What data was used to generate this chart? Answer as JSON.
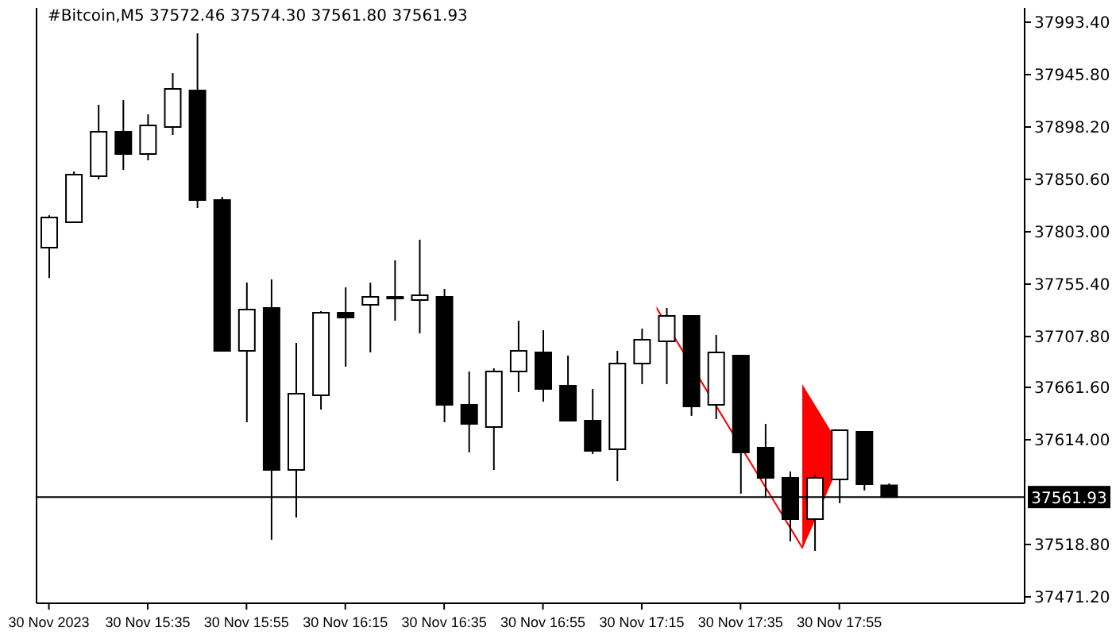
{
  "chart_data": {
    "type": "candlestick",
    "title": "#Bitcoin,M5 37572.46 37574.30 37561.80 37561.93",
    "categories": [
      "30 Nov 2023",
      null,
      null,
      null,
      "30 Nov 15:35",
      null,
      null,
      null,
      "30 Nov 15:55",
      null,
      null,
      null,
      "30 Nov 16:15",
      null,
      null,
      null,
      "30 Nov 16:35",
      null,
      null,
      null,
      "30 Nov 16:55",
      null,
      null,
      null,
      "30 Nov 17:15",
      null,
      null,
      null,
      "30 Nov 17:35",
      null,
      null,
      null,
      "30 Nov 17:55",
      null,
      null,
      null,
      null,
      null,
      null,
      null
    ],
    "ohlc": [
      [
        37788.6,
        37818,
        37761,
        37816
      ],
      [
        37811.6,
        37857.8,
        37811,
        37855
      ],
      [
        37853.5,
        37918.4,
        37850.6,
        37893.9
      ],
      [
        37893.9,
        37922.7,
        37859.2,
        37873.7
      ],
      [
        37873.7,
        37909.7,
        37867.9,
        37899.6
      ],
      [
        37898.2,
        37947.2,
        37891,
        37932.8
      ],
      [
        37931.4,
        37983.3,
        37824.6,
        37831.8
      ],
      [
        37831.8,
        37834.7,
        37694.8,
        37694.8
      ],
      [
        37694.8,
        37756.8,
        37629.9,
        37732.3
      ],
      [
        37733.7,
        37759.7,
        37523.1,
        37586.6
      ],
      [
        37586.6,
        37702,
        37543.3,
        37655.9
      ],
      [
        37654.4,
        37730.9,
        37641.4,
        37729.4
      ],
      [
        37729.4,
        37752.5,
        37680.4,
        37725.1
      ],
      [
        37736.6,
        37756.8,
        37693.4,
        37743.8
      ],
      [
        37743.8,
        37777,
        37722.2,
        37743.8
      ],
      [
        37741,
        37795.8,
        37710.7,
        37745.3
      ],
      [
        37743.8,
        37751.1,
        37629.9,
        37645.8
      ],
      [
        37645.8,
        37676,
        37602.5,
        37628.4
      ],
      [
        37625.6,
        37678.9,
        37586.6,
        37676
      ],
      [
        37676,
        37722.2,
        37657.3,
        37694.8
      ],
      [
        37693.4,
        37713.6,
        37648.6,
        37660.2
      ],
      [
        37663.1,
        37690.5,
        37631.3,
        37631.3
      ],
      [
        37631.3,
        37660.2,
        37601,
        37603.9
      ],
      [
        37605.4,
        37694.8,
        37576.5,
        37683.3
      ],
      [
        37683.3,
        37715,
        37664.5,
        37704.9
      ],
      [
        37703.5,
        37733.7,
        37664.5,
        37726.5
      ],
      [
        37726.5,
        37726.5,
        37635.7,
        37644.3
      ],
      [
        37645.8,
        37709.2,
        37632.8,
        37693.4
      ],
      [
        37690.5,
        37690.5,
        37565,
        37602.5
      ],
      [
        37606.8,
        37628.4,
        37562.1,
        37579.4
      ],
      [
        37579.4,
        37585.2,
        37521.7,
        37541.9
      ],
      [
        37541.9,
        37582.3,
        37513,
        37579.4
      ],
      [
        37578,
        37622.7,
        37556.3,
        37622.7
      ],
      [
        37621.2,
        37621.2,
        37567.9,
        37573.6
      ],
      [
        37572.46,
        37574.3,
        37561.8,
        37561.93
      ],
      null,
      null,
      null,
      null,
      null
    ],
    "ylim": [
      37465.4,
      38006.4
    ],
    "yticks": [
      {
        "value": 37471.2,
        "label": "37471.20"
      },
      {
        "value": 37518.8,
        "label": "37518.80"
      },
      {
        "value": 37614,
        "label": "37614.00"
      },
      {
        "value": 37661.6,
        "label": "37661.60"
      },
      {
        "value": 37707.8,
        "label": "37707.80"
      },
      {
        "value": 37755.4,
        "label": "37755.40"
      },
      {
        "value": 37803,
        "label": "37803.00"
      },
      {
        "value": 37850.6,
        "label": "37850.60"
      },
      {
        "value": 37898.2,
        "label": "37898.20"
      },
      {
        "value": 37945.8,
        "label": "37945.80"
      },
      {
        "value": 37993.4,
        "label": "37993.40"
      }
    ],
    "ref_lines": [
      {
        "axis": "y",
        "value": 37561.93,
        "label": "37561.93",
        "color": "#000000"
      }
    ],
    "grid": false,
    "legend": false
  }
}
